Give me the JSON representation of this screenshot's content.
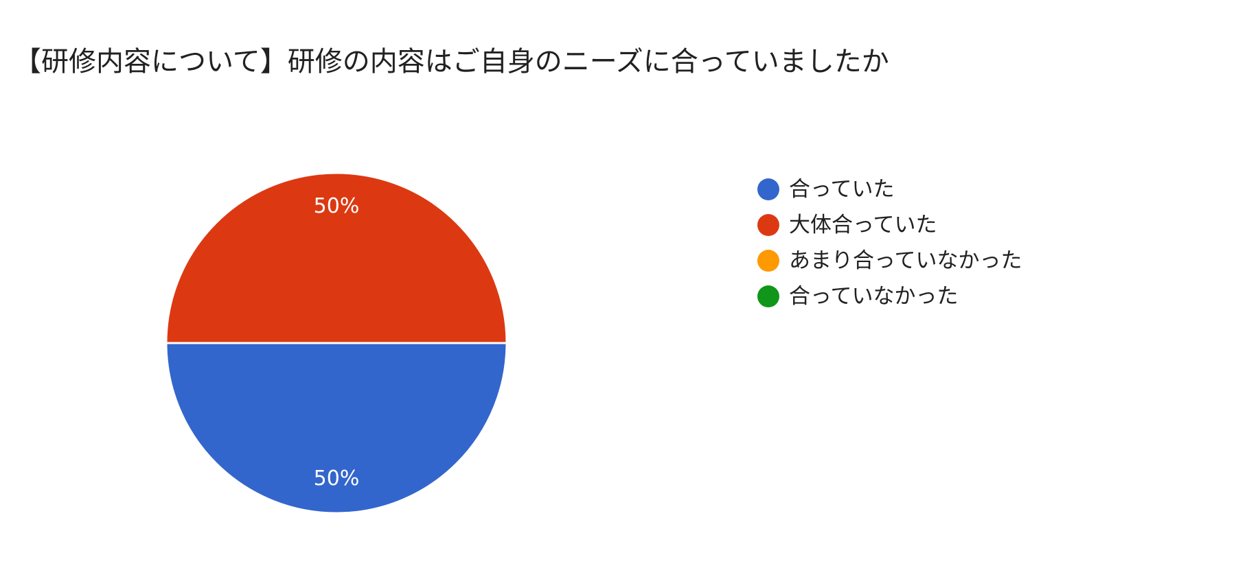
{
  "chart_data": {
    "type": "pie",
    "title": "【研修内容について】研修の内容はご自身のニーズに合っていましたか",
    "legend_position": "right",
    "slices": [
      {
        "label": "合っていた",
        "value": 50,
        "color": "#3366cc",
        "display": "50%"
      },
      {
        "label": "大体合っていた",
        "value": 50,
        "color": "#dc3912",
        "display": "50%"
      },
      {
        "label": "あまり合っていなかった",
        "value": 0,
        "color": "#ff9900",
        "display": ""
      },
      {
        "label": "合っていなかった",
        "value": 0,
        "color": "#109618",
        "display": ""
      }
    ]
  }
}
